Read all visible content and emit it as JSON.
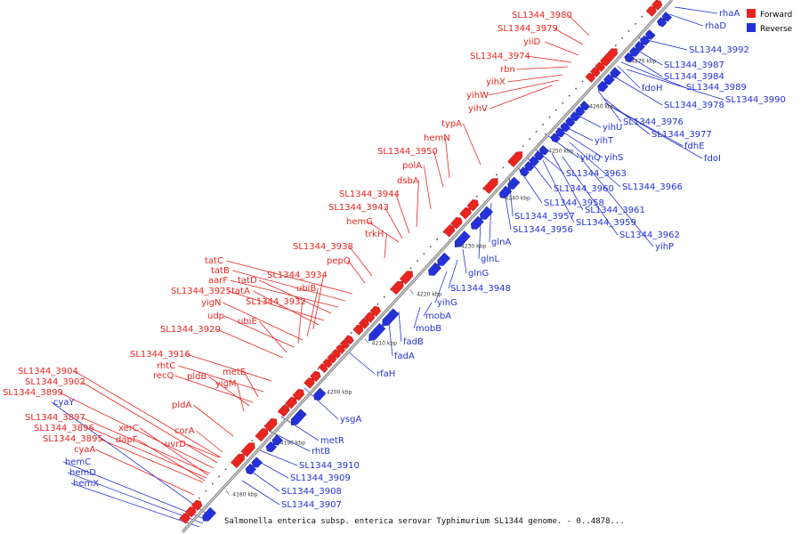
{
  "legend": {
    "forward_label": "Forward",
    "reverse_label": "Reverse",
    "forward_color": "#e8251f",
    "reverse_color": "#2431d8"
  },
  "caption": "Salmonella enterica subsp. enterica serovar Typhimurium SL1344 genome. - 0..4878...",
  "tick_labels": [
    "4180 kbp",
    "4190 kbp",
    "4200 kbp",
    "4210 kbp",
    "4220 kbp",
    "4230 kbp",
    "4240 kbp",
    "4250 kbp",
    "4260 kbp",
    "4270 kbp"
  ],
  "forward_genes": [
    "SL1344_3980",
    "SL1344_3979",
    "yiiD",
    "SL1344_3974",
    "rbn",
    "yihX",
    "yihW",
    "yihV",
    "typA",
    "hemN",
    "SL1344_3950",
    "polA",
    "dsbA",
    "SL1344_3944",
    "SL1344_3943",
    "hemG",
    "trkH",
    "SL1344_3938",
    "pepQ",
    "tatC",
    "tatB",
    "aarF",
    "tatD",
    "SL1344_3925",
    "tatA",
    "SL1344_3934",
    "ubiB",
    "yigN",
    "SL1344_3932",
    "udp",
    "ubiE",
    "SL1344_3920",
    "SL1344_3916",
    "rhtC",
    "metE",
    "recQ",
    "pldB",
    "yigM",
    "pldA",
    "SL1344_3904",
    "SL1344_3902",
    "SL1344_3899",
    "SL1344_3897",
    "xerC",
    "SL1344_3896",
    "dapF",
    "SL1344_3895",
    "corA",
    "uvrD",
    "cyaA"
  ],
  "reverse_genes": [
    "rhaA",
    "rhaD",
    "SL1344_3992",
    "SL1344_3987",
    "SL1344_3984",
    "fdoH",
    "SL1344_3989",
    "SL1344_3990",
    "SL1344_3978",
    "yihU",
    "SL1344_3976",
    "SL1344_3977",
    "yihT",
    "fdhE",
    "yihQ",
    "yihS",
    "fdoI",
    "SL1344_3963",
    "SL1344_3960",
    "SL1344_3966",
    "SL1344_3958",
    "SL1344_3961",
    "SL1344_3957",
    "SL1344_3959",
    "SL1344_3956",
    "SL1344_3962",
    "yihP",
    "glnA",
    "glnL",
    "glnG",
    "SL1344_3948",
    "yihG",
    "mobA",
    "mobB",
    "fadB",
    "fadA",
    "rfaH",
    "ysgA",
    "metR",
    "rhtB",
    "SL1344_3910",
    "SL1344_3909",
    "SL1344_3908",
    "SL1344_3907",
    "cyaY",
    "hemC",
    "hemD",
    "hemX"
  ]
}
